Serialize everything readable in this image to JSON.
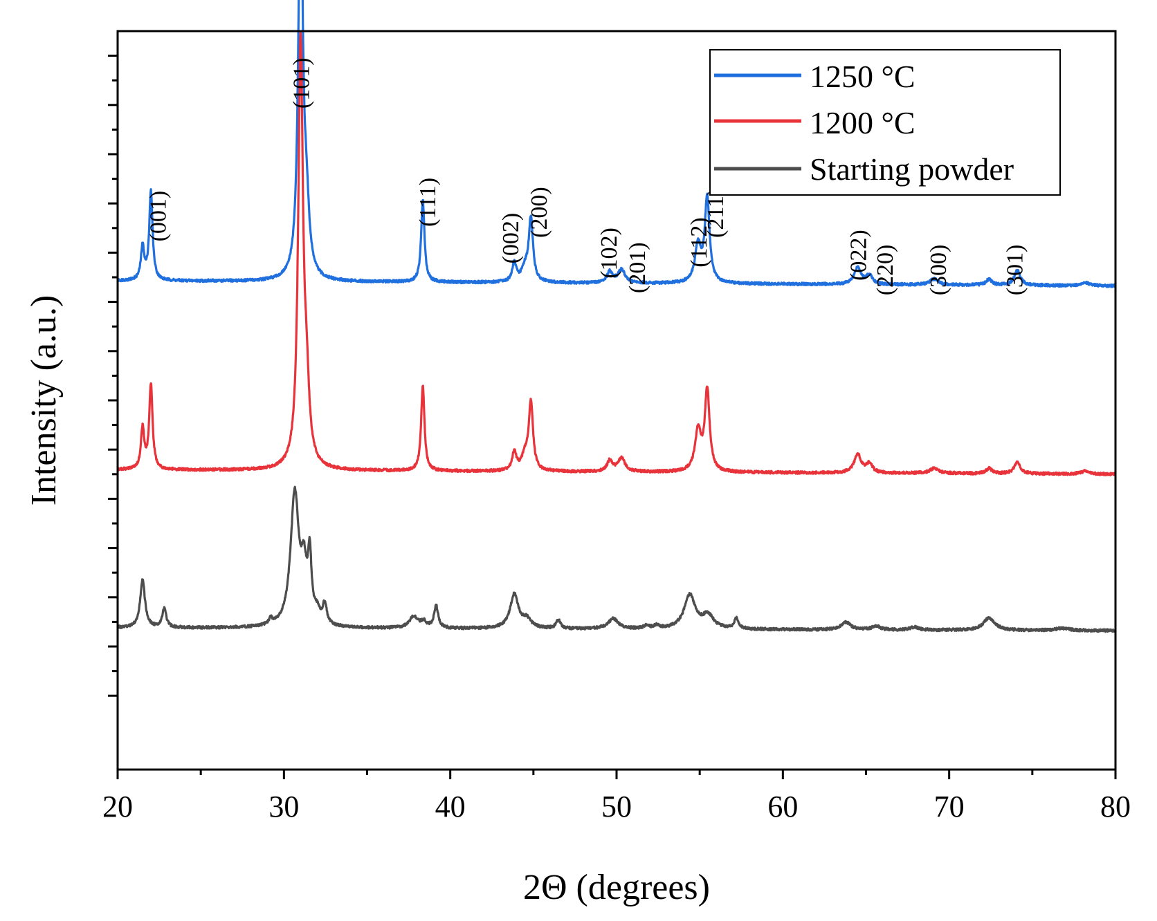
{
  "chart_data": {
    "type": "line",
    "title": "",
    "xlabel": "2Θ (degrees)",
    "ylabel": "Intensity (a.u.)",
    "xlim": [
      20,
      80
    ],
    "ylim": [
      0,
      100
    ],
    "xticks": [
      20,
      30,
      40,
      50,
      60,
      70,
      80
    ],
    "xtick_labels": [
      "20",
      "30",
      "40",
      "50",
      "60",
      "70",
      "80"
    ],
    "y_tick_labels_shown": false,
    "legend_position": "top-right",
    "series": [
      {
        "name": "1250 °C",
        "color": "#1f6fde",
        "baseline": 66.2,
        "baseline_end": 65.5,
        "peaks": [
          {
            "x": 21.5,
            "h": 4.5,
            "w": 0.12
          },
          {
            "x": 22.0,
            "h": 12.0,
            "w": 0.12
          },
          {
            "x": 31.0,
            "h": 55.0,
            "w": 0.16
          },
          {
            "x": 31.35,
            "h": 8.0,
            "w": 0.2
          },
          {
            "x": 38.35,
            "h": 11.0,
            "w": 0.12
          },
          {
            "x": 43.85,
            "h": 2.5,
            "w": 0.15
          },
          {
            "x": 44.5,
            "h": 1.8,
            "w": 0.25
          },
          {
            "x": 44.85,
            "h": 8.5,
            "w": 0.15
          },
          {
            "x": 49.6,
            "h": 1.5,
            "w": 0.2
          },
          {
            "x": 50.3,
            "h": 1.8,
            "w": 0.25
          },
          {
            "x": 54.9,
            "h": 5.0,
            "w": 0.22
          },
          {
            "x": 55.45,
            "h": 11.5,
            "w": 0.17
          },
          {
            "x": 64.5,
            "h": 2.3,
            "w": 0.25
          },
          {
            "x": 65.2,
            "h": 1.2,
            "w": 0.22
          },
          {
            "x": 69.1,
            "h": 0.8,
            "w": 0.3
          },
          {
            "x": 72.4,
            "h": 0.8,
            "w": 0.2
          },
          {
            "x": 74.1,
            "h": 2.0,
            "w": 0.22
          },
          {
            "x": 78.2,
            "h": 0.4,
            "w": 0.3
          }
        ]
      },
      {
        "name": "1200 °C",
        "color": "#e8333b",
        "baseline": 40.6,
        "baseline_end": 40.0,
        "peaks": [
          {
            "x": 21.5,
            "h": 5.5,
            "w": 0.12
          },
          {
            "x": 22.0,
            "h": 11.5,
            "w": 0.12
          },
          {
            "x": 31.0,
            "h": 57.0,
            "w": 0.17
          },
          {
            "x": 31.35,
            "h": 9.0,
            "w": 0.2
          },
          {
            "x": 38.35,
            "h": 11.5,
            "w": 0.12
          },
          {
            "x": 43.85,
            "h": 2.5,
            "w": 0.15
          },
          {
            "x": 44.5,
            "h": 2.0,
            "w": 0.25
          },
          {
            "x": 44.85,
            "h": 9.0,
            "w": 0.15
          },
          {
            "x": 49.6,
            "h": 1.5,
            "w": 0.2
          },
          {
            "x": 50.3,
            "h": 1.8,
            "w": 0.25
          },
          {
            "x": 54.9,
            "h": 5.5,
            "w": 0.22
          },
          {
            "x": 55.45,
            "h": 11.0,
            "w": 0.17
          },
          {
            "x": 64.5,
            "h": 2.5,
            "w": 0.25
          },
          {
            "x": 65.2,
            "h": 1.2,
            "w": 0.22
          },
          {
            "x": 69.1,
            "h": 0.7,
            "w": 0.3
          },
          {
            "x": 72.4,
            "h": 0.7,
            "w": 0.2
          },
          {
            "x": 74.1,
            "h": 1.5,
            "w": 0.22
          },
          {
            "x": 78.2,
            "h": 0.4,
            "w": 0.3
          }
        ]
      },
      {
        "name": "Starting powder",
        "color": "#4d4d4d",
        "baseline": 19.2,
        "baseline_end": 18.8,
        "peaks": [
          {
            "x": 21.5,
            "h": 6.5,
            "w": 0.17
          },
          {
            "x": 22.8,
            "h": 2.5,
            "w": 0.15
          },
          {
            "x": 29.2,
            "h": 0.8,
            "w": 0.12
          },
          {
            "x": 30.65,
            "h": 18.0,
            "w": 0.3
          },
          {
            "x": 31.2,
            "h": 6.5,
            "w": 0.2
          },
          {
            "x": 31.55,
            "h": 8.5,
            "w": 0.13
          },
          {
            "x": 32.0,
            "h": 1.5,
            "w": 0.2
          },
          {
            "x": 32.45,
            "h": 2.7,
            "w": 0.15
          },
          {
            "x": 37.8,
            "h": 1.6,
            "w": 0.3
          },
          {
            "x": 38.4,
            "h": 0.8,
            "w": 0.2
          },
          {
            "x": 39.15,
            "h": 3.0,
            "w": 0.15
          },
          {
            "x": 43.85,
            "h": 4.6,
            "w": 0.3
          },
          {
            "x": 44.6,
            "h": 1.2,
            "w": 0.3
          },
          {
            "x": 46.5,
            "h": 1.2,
            "w": 0.15
          },
          {
            "x": 49.8,
            "h": 1.4,
            "w": 0.35
          },
          {
            "x": 51.8,
            "h": 0.4,
            "w": 0.2
          },
          {
            "x": 52.4,
            "h": 0.4,
            "w": 0.2
          },
          {
            "x": 54.4,
            "h": 4.6,
            "w": 0.4
          },
          {
            "x": 55.5,
            "h": 1.8,
            "w": 0.4
          },
          {
            "x": 57.2,
            "h": 1.5,
            "w": 0.15
          },
          {
            "x": 63.8,
            "h": 1.0,
            "w": 0.35
          },
          {
            "x": 65.6,
            "h": 0.5,
            "w": 0.3
          },
          {
            "x": 67.9,
            "h": 0.4,
            "w": 0.3
          },
          {
            "x": 72.4,
            "h": 1.7,
            "w": 0.4
          },
          {
            "x": 76.8,
            "h": 0.3,
            "w": 0.5
          }
        ]
      }
    ],
    "annotations": [
      {
        "label": "(001)",
        "x": 22.4,
        "y": 71.5
      },
      {
        "label": "(101)",
        "x": 31.0,
        "y": 89.5
      },
      {
        "label": "(111)",
        "x": 38.6,
        "y": 73.5
      },
      {
        "label": "(002)",
        "x": 43.6,
        "y": 68.5
      },
      {
        "label": "(200)",
        "x": 45.3,
        "y": 72.0
      },
      {
        "label": "(102)",
        "x": 49.5,
        "y": 66.5
      },
      {
        "label": "(201)",
        "x": 51.2,
        "y": 64.5
      },
      {
        "label": "(112)",
        "x": 54.9,
        "y": 68.0
      },
      {
        "label": "(211)",
        "x": 55.9,
        "y": 72.0
      },
      {
        "label": "(022)",
        "x": 64.5,
        "y": 66.2
      },
      {
        "label": "(220)",
        "x": 66.1,
        "y": 64.2
      },
      {
        "label": "(300)",
        "x": 69.3,
        "y": 64.2
      },
      {
        "label": "(301)",
        "x": 73.9,
        "y": 64.2
      }
    ]
  }
}
